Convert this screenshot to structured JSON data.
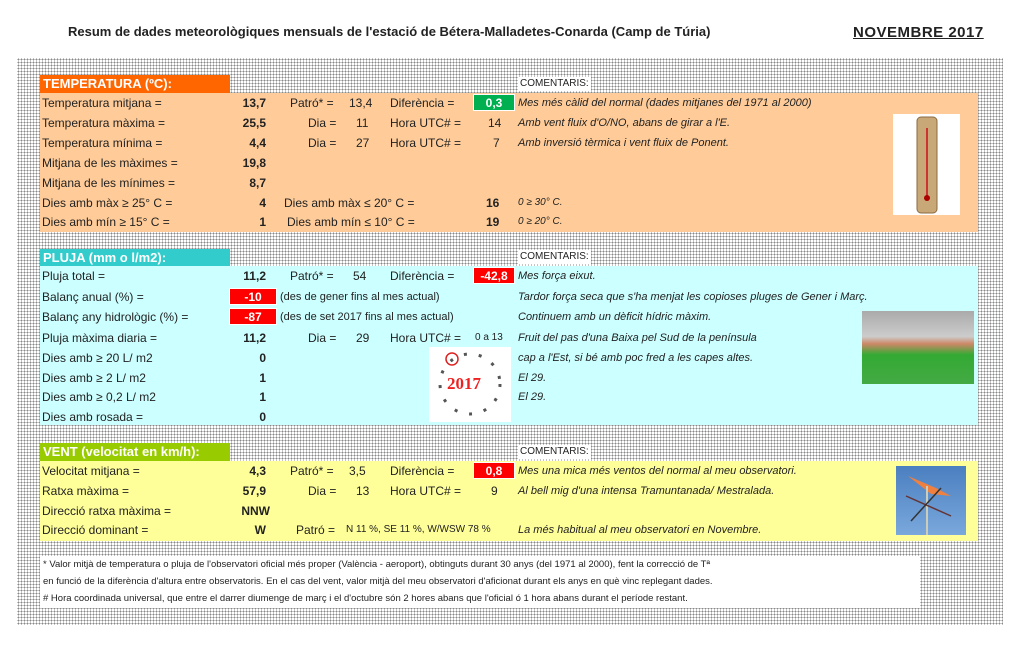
{
  "title": "Resum de dades meteorològiques mensuals de l'estació de Bétera-Malladetes-Conarda (Camp de Túria)",
  "month": "NOVEMBRE 2017",
  "comments_label": "COMENTARIS:",
  "colors": {
    "temp_header": "#FF6600",
    "temp_body": "#FFCC99",
    "rain_header": "#33CCCC",
    "rain_body": "#CCFFFF",
    "wind_header": "#99CC00",
    "wind_body": "#FFFF99",
    "positive": "#00B050",
    "negative": "#FF0000"
  },
  "temperatura": {
    "header": "TEMPERATURA (ºC):",
    "rows": [
      {
        "label": "Temperatura mitjana =",
        "value": "13,7",
        "patro_label": "Patró* =",
        "patro": "13,4",
        "diff_label": "Diferència =",
        "diff": "0,3",
        "comment": "Mes més càlid del normal (dades mitjanes del 1971 al 2000)"
      },
      {
        "label": "Temperatura màxima =",
        "value": "25,5",
        "dia_label": "Dia =",
        "dia": "11",
        "hora_label": "Hora UTC# =",
        "hora": "14",
        "comment": "Amb vent fluix d'O/NO, abans de girar a l'E."
      },
      {
        "label": "Temperatura mínima =",
        "value": "4,4",
        "dia_label": "Dia =",
        "dia": "27",
        "hora_label": "Hora UTC# =",
        "hora": "7",
        "comment": "Amb inversió tèrmica i vent fluix de Ponent."
      },
      {
        "label": "Mitjana de les màximes =",
        "value": "19,8"
      },
      {
        "label": "Mitjana de les mínimes =",
        "value": "8,7"
      },
      {
        "label": "Dies amb màx ≥ 25° C =",
        "value": "4",
        "extra_label": "Dies amb màx ≤ 20° C =",
        "extra": "16",
        "comment": "0 ≥ 30° C."
      },
      {
        "label": "Dies amb mín ≥ 15° C =",
        "value": "1",
        "extra_label": "Dies amb mín ≤ 10° C =",
        "extra": "19",
        "comment": "0 ≥ 20° C."
      }
    ]
  },
  "pluja": {
    "header": "PLUJA (mm o l/m2):",
    "rows": [
      {
        "label": "Pluja total =",
        "value": "11,2",
        "patro_label": "Patró* =",
        "patro": "54",
        "diff_label": "Diferència =",
        "diff": "-42,8",
        "comment": "Mes força eixut."
      },
      {
        "label": "Balanç anual (%) =",
        "value": "-10",
        "note": "(des de gener fins al mes actual)",
        "comment": "Tardor força seca que s'ha menjat les copioses pluges de Gener i Març."
      },
      {
        "label": "Balanç any hidrològic (%) =",
        "value": "-87",
        "note": "(des de set 2017 fins al mes actual)",
        "comment": "Continuem amb un dèficit hídric màxim."
      },
      {
        "label": "Pluja màxima diaria =",
        "value": "11,2",
        "dia_label": "Dia =",
        "dia": "29",
        "hora_label": "Hora UTC# =",
        "hora": "0 a 13",
        "comment": "Fruit del pas d'una Baixa pel Sud de la península"
      },
      {
        "label": "Dies amb ≥ 20 L/ m2",
        "value": "0",
        "comment": "cap a l'Est, si bé amb poc fred a les capes altes."
      },
      {
        "label": "Dies amb ≥ 2 L/ m2",
        "value": "1",
        "comment": "El 29."
      },
      {
        "label": "Dies amb ≥ 0,2 L/ m2",
        "value": "1",
        "comment": "El 29."
      },
      {
        "label": "Dies amb rosada =",
        "value": "0"
      }
    ],
    "clock_year": "2017"
  },
  "vent": {
    "header": "VENT (velocitat en km/h):",
    "rows": [
      {
        "label": "Velocitat mitjana =",
        "value": "4,3",
        "patro_label": "Patró* =",
        "patro": "3,5",
        "diff_label": "Diferència =",
        "diff": "0,8",
        "comment": "Mes una mica més ventos del normal al meu observatori."
      },
      {
        "label": "Ratxa màxima =",
        "value": "57,9",
        "dia_label": "Dia =",
        "dia": "13",
        "hora_label": "Hora UTC# =",
        "hora": "9",
        "comment": "Al bell mig d'una intensa Tramuntanada/ Mestralada."
      },
      {
        "label": "Direcció ratxa màxima =",
        "value": "NNW"
      },
      {
        "label": "Direcció dominant =",
        "value": "W",
        "patro_label": "Patró =",
        "patro": "N 11 %, SE 11 %, W/WSW 78 %",
        "comment": "La més habitual al meu observatori en Novembre."
      }
    ]
  },
  "footer": [
    "* Valor mitjà de temperatura o pluja de l'observatori oficial més proper (València - aeroport), obtinguts durant 30 anys (del 1971 al 2000), fent la correcció de Tª",
    "en funció de la diferència d'altura entre observatoris. En el cas del vent, valor mitjà del meu observatori d'aficionat durant els anys en què vinc replegant dades.",
    "# Hora coordinada universal, que entre el darrer diumenge de març i el d'octubre són 2 hores abans que l'oficial ó 1 hora abans durant el període restant."
  ]
}
